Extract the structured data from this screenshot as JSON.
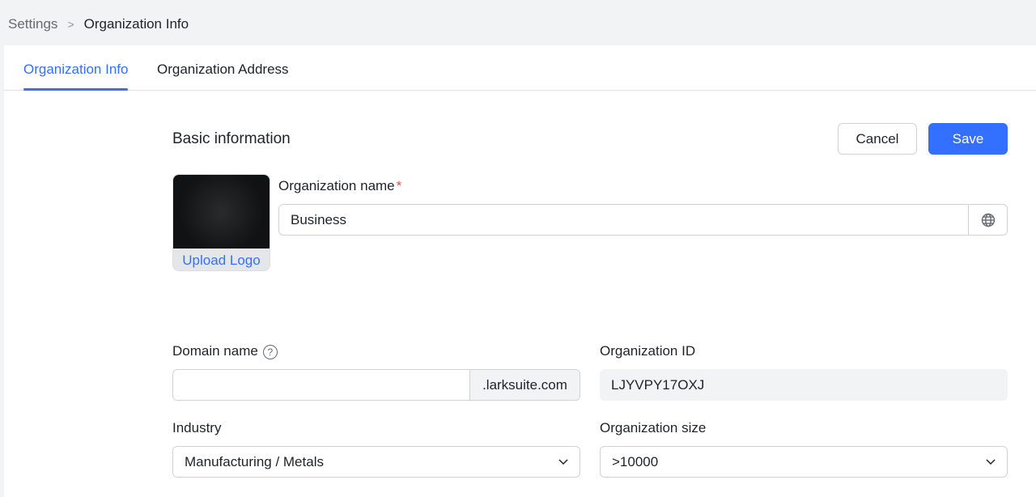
{
  "breadcrumb": {
    "parent": "Settings",
    "current": "Organization Info"
  },
  "tabs": [
    {
      "label": "Organization Info",
      "active": true
    },
    {
      "label": "Organization Address",
      "active": false
    }
  ],
  "section": {
    "title": "Basic information"
  },
  "actions": {
    "cancel": "Cancel",
    "save": "Save"
  },
  "logo": {
    "upload_label": "Upload Logo"
  },
  "fields": {
    "org_name": {
      "label": "Organization name",
      "required_mark": "*",
      "value": "Business"
    },
    "domain": {
      "label": "Domain name",
      "help": "?",
      "value": "",
      "suffix": ".larksuite.com"
    },
    "org_id": {
      "label": "Organization ID",
      "value": "LJYVPY17OXJ"
    },
    "industry": {
      "label": "Industry",
      "value": "Manufacturing / Metals"
    },
    "size": {
      "label": "Organization size",
      "value": ">10000"
    }
  },
  "colors": {
    "accent": "#3370ff",
    "required": "#f54a45"
  }
}
